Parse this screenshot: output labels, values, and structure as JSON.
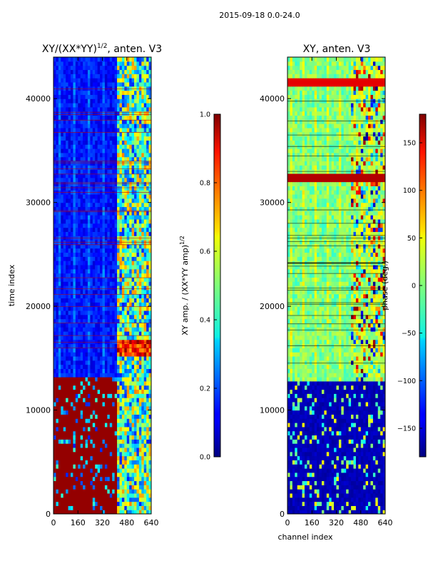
{
  "suptitle": "2015-09-18 0.0-24.0",
  "chart_data": [
    {
      "type": "heatmap",
      "title_prefix": "XY/(XX*YY)",
      "title_exp": "1/2",
      "title_suffix": ", anten. V3",
      "xlabel": "",
      "ylabel": "time index",
      "xlim": [
        0,
        640
      ],
      "ylim": [
        0,
        44000
      ],
      "xticks": [
        0,
        160,
        320,
        480,
        640
      ],
      "yticks": [
        0,
        10000,
        20000,
        30000,
        40000
      ],
      "colorbar": {
        "label_prefix": "XY amp. / (XX*YY amp)",
        "label_exp": "1/2",
        "range": [
          0.0,
          1.0
        ],
        "ticks": [
          "0.0",
          "0.2",
          "0.4",
          "0.6",
          "0.8",
          "1.0"
        ],
        "colormap": "jet"
      }
    },
    {
      "type": "heatmap",
      "title": "XY, anten. V3",
      "xlabel": "channel index",
      "ylabel": "",
      "xlim": [
        0,
        640
      ],
      "ylim": [
        0,
        44000
      ],
      "xticks": [
        0,
        160,
        320,
        480,
        640
      ],
      "yticks": [
        0,
        10000,
        20000,
        30000,
        40000
      ],
      "colorbar": {
        "label": "phase (deg.)",
        "range": [
          -180,
          180
        ],
        "ticks": [
          "−150",
          "−100",
          "−50",
          "0",
          "50",
          "100",
          "150"
        ],
        "colormap": "jet"
      }
    }
  ]
}
